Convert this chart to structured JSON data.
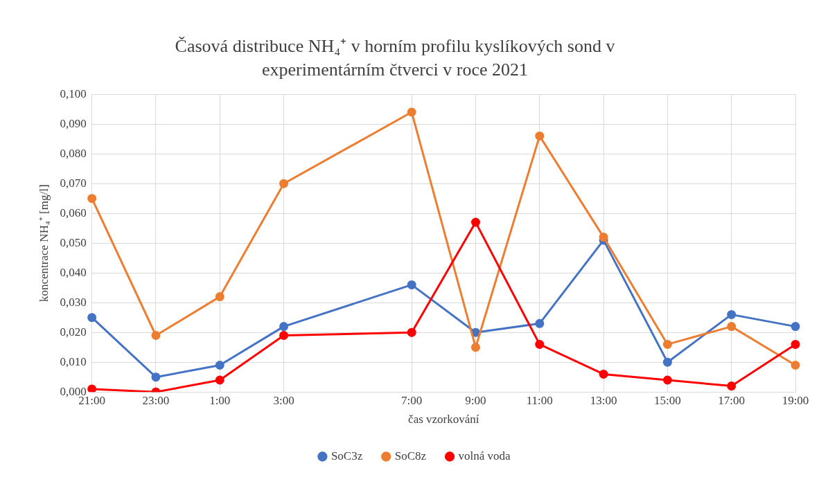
{
  "chart_data": {
    "type": "line",
    "title": "Časová distribuce NH₄⁺ v horním profilu kyslíkových sond v experimentárním čtverci v roce 2021",
    "xlabel": "čas vzorkování",
    "ylabel": "koncentrace NH₄⁺ [mg/l]",
    "categories": [
      "21:00",
      "23:00",
      "1:00",
      "3:00",
      null,
      "7:00",
      "9:00",
      "11:00",
      "13:00",
      "15:00",
      "17:00",
      "19:00"
    ],
    "series": [
      {
        "name": "SoC3z",
        "color": "#4472c4",
        "values": [
          0.025,
          0.005,
          0.009,
          0.022,
          null,
          0.036,
          0.02,
          0.023,
          0.051,
          0.01,
          0.026,
          0.022
        ]
      },
      {
        "name": "SoC8z",
        "color": "#ed7d31",
        "values": [
          0.065,
          0.019,
          0.032,
          0.07,
          null,
          0.094,
          0.015,
          0.086,
          0.052,
          0.016,
          0.022,
          0.009
        ]
      },
      {
        "name": "volná voda",
        "color": "#ff0000",
        "values": [
          0.001,
          0.0,
          0.004,
          0.019,
          null,
          0.02,
          0.057,
          0.016,
          0.006,
          0.004,
          0.002,
          0.016
        ]
      }
    ],
    "ylim": [
      0,
      0.1
    ],
    "yticks": [
      {
        "value": 0,
        "label": "0,000"
      },
      {
        "value": 0.01,
        "label": "0,010"
      },
      {
        "value": 0.02,
        "label": "0,020"
      },
      {
        "value": 0.03,
        "label": "0,030"
      },
      {
        "value": 0.04,
        "label": "0,040"
      },
      {
        "value": 0.05,
        "label": "0,050"
      },
      {
        "value": 0.06,
        "label": "0,060"
      },
      {
        "value": 0.07,
        "label": "0,070"
      },
      {
        "value": 0.08,
        "label": "0,080"
      },
      {
        "value": 0.09,
        "label": "0,090"
      },
      {
        "value": 0.1,
        "label": "0,100"
      }
    ],
    "grid": true,
    "legend": "bottom",
    "marker": "circle",
    "line_style": "solid"
  }
}
